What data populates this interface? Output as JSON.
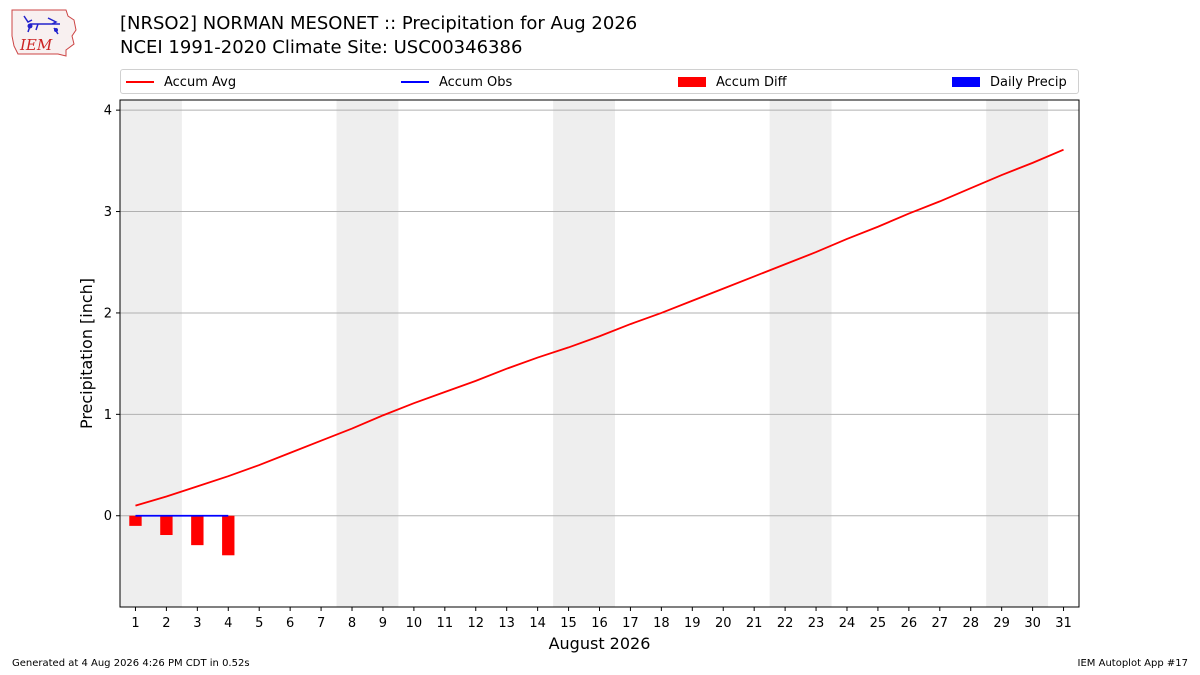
{
  "header": {
    "title_line1": "[NRSO2] NORMAN MESONET :: Precipitation for Aug 2026",
    "title_line2": "NCEI 1991-2020 Climate Site: USC00346386",
    "logo_text": "IEM"
  },
  "legend": [
    {
      "label": "Accum Avg",
      "kind": "line",
      "color": "#ff0000"
    },
    {
      "label": "Accum Obs",
      "kind": "line",
      "color": "#0000ff"
    },
    {
      "label": "Accum Diff",
      "kind": "patch",
      "color": "#ff0000"
    },
    {
      "label": "Daily Precip",
      "kind": "patch",
      "color": "#0000ff"
    }
  ],
  "footer": {
    "left": "Generated at 4 Aug 2026 4:26 PM CDT in 0.52s",
    "right": "IEM Autoplot App #17"
  },
  "chart_data": {
    "type": "line",
    "xlabel": "August 2026",
    "ylabel": "Precipitation [inch]",
    "x": [
      1,
      2,
      3,
      4,
      5,
      6,
      7,
      8,
      9,
      10,
      11,
      12,
      13,
      14,
      15,
      16,
      17,
      18,
      19,
      20,
      21,
      22,
      23,
      24,
      25,
      26,
      27,
      28,
      29,
      30,
      31
    ],
    "xlim": [
      0.5,
      31.5
    ],
    "ylim": [
      -0.9,
      4.1
    ],
    "yticks": [
      0,
      1,
      2,
      3,
      4
    ],
    "grid": "horizontal",
    "weekend_shading": [
      [
        0.5,
        2.5
      ],
      [
        7.5,
        9.5
      ],
      [
        14.5,
        16.5
      ],
      [
        21.5,
        23.5
      ],
      [
        28.5,
        30.5
      ]
    ],
    "series": [
      {
        "name": "Accum Avg",
        "type": "line",
        "color": "#ff0000",
        "x": [
          1,
          2,
          3,
          4,
          5,
          6,
          7,
          8,
          9,
          10,
          11,
          12,
          13,
          14,
          15,
          16,
          17,
          18,
          19,
          20,
          21,
          22,
          23,
          24,
          25,
          26,
          27,
          28,
          29,
          30,
          31
        ],
        "values": [
          0.1,
          0.19,
          0.29,
          0.39,
          0.5,
          0.62,
          0.74,
          0.86,
          0.99,
          1.11,
          1.22,
          1.33,
          1.45,
          1.56,
          1.66,
          1.77,
          1.89,
          2.0,
          2.12,
          2.24,
          2.36,
          2.48,
          2.6,
          2.73,
          2.85,
          2.98,
          3.1,
          3.23,
          3.36,
          3.48,
          3.61
        ]
      },
      {
        "name": "Accum Obs",
        "type": "line",
        "color": "#0000ff",
        "x": [
          1,
          2,
          3,
          4
        ],
        "values": [
          0,
          0,
          0,
          0
        ]
      },
      {
        "name": "Accum Diff",
        "type": "bar",
        "color": "#ff0000",
        "x": [
          1,
          2,
          3,
          4
        ],
        "values": [
          -0.1,
          -0.19,
          -0.29,
          -0.39
        ]
      },
      {
        "name": "Daily Precip",
        "type": "bar",
        "color": "#0000ff",
        "x": [
          1,
          2,
          3,
          4
        ],
        "values": [
          0,
          0,
          0,
          0
        ]
      }
    ]
  }
}
